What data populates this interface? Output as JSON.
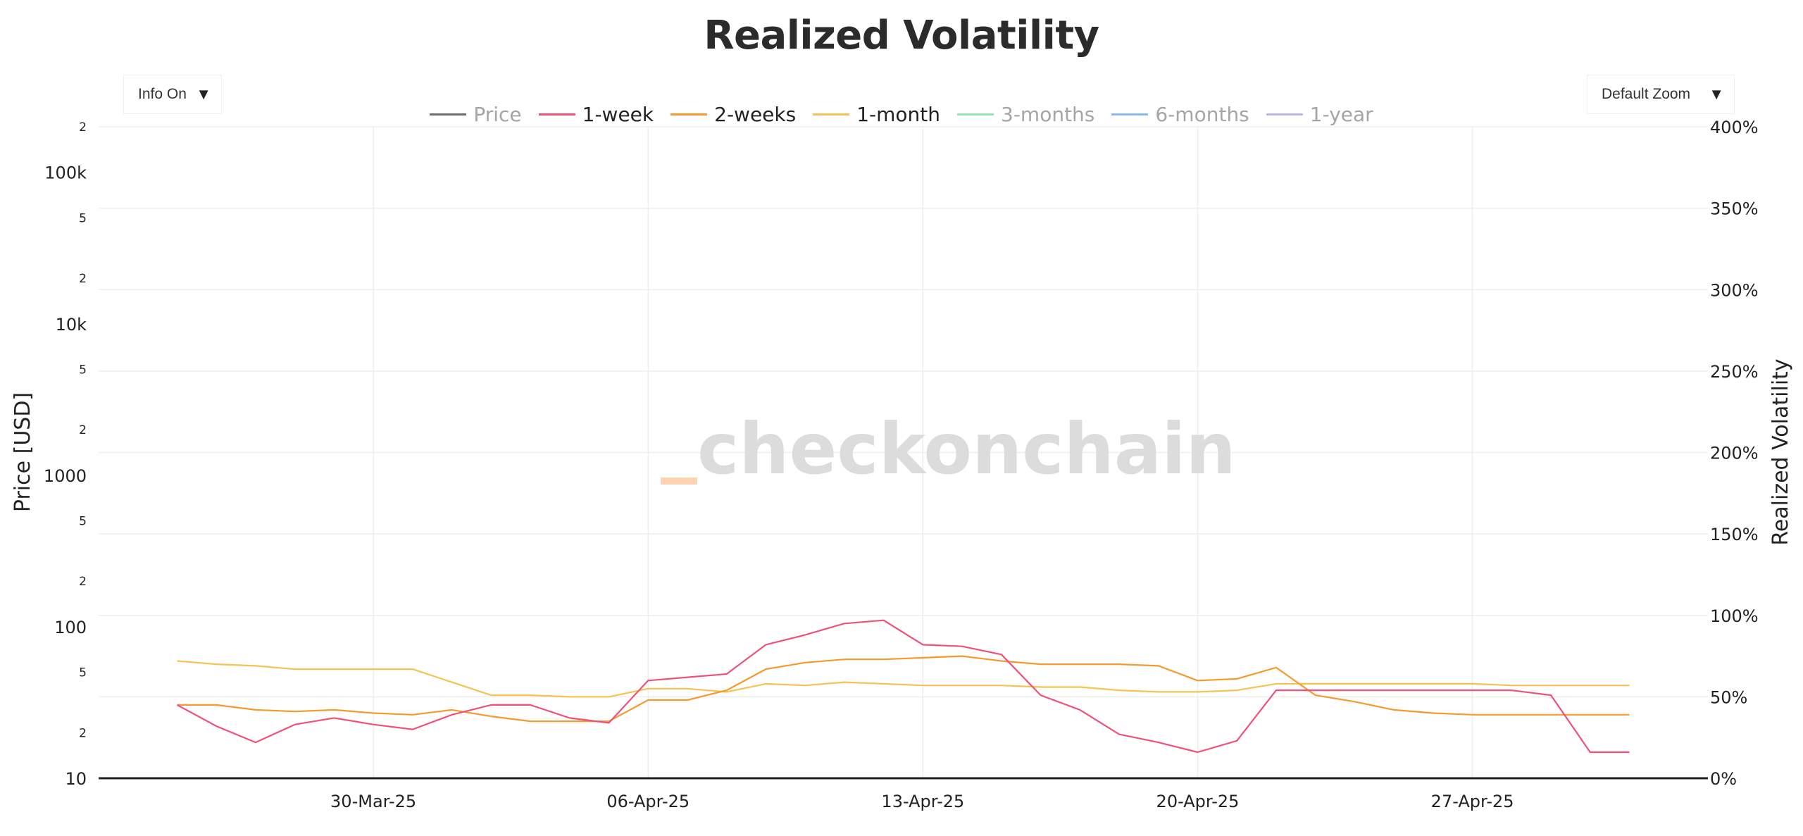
{
  "title": "Realized Volatility",
  "controls": {
    "info_label": "Info On",
    "zoom_label": "Default Zoom",
    "caret": "▼"
  },
  "watermark": "checkonchain",
  "colors": {
    "price": "#555555",
    "1-week": "#f0517a",
    "2-weeks": "#f59a2e",
    "1-month": "#f7c154",
    "3-months": "#7fe0a6",
    "6-months": "#78aef0",
    "1-year": "#b7a5ee",
    "watermark_accent": "#fbd3b0"
  },
  "legend": [
    {
      "name": "Price",
      "color": "#555555",
      "visible": false
    },
    {
      "name": "1-week",
      "color": "#f0517a",
      "visible": true
    },
    {
      "name": "2-weeks",
      "color": "#f59a2e",
      "visible": true
    },
    {
      "name": "1-month",
      "color": "#f7c154",
      "visible": true
    },
    {
      "name": "3-months",
      "color": "#7fe0a6",
      "visible": false
    },
    {
      "name": "6-months",
      "color": "#78aef0",
      "visible": false
    },
    {
      "name": "1-year",
      "color": "#b7a5ee",
      "visible": false
    }
  ],
  "chart_data": {
    "type": "line",
    "title": "Realized Volatility",
    "y_left": {
      "label": "Price [USD]",
      "scale": "log",
      "range": [
        10,
        200000
      ],
      "major_ticks": [
        {
          "value": 100000,
          "label": "100k"
        },
        {
          "value": 10000,
          "label": "10k"
        },
        {
          "value": 1000,
          "label": "1000"
        },
        {
          "value": 100,
          "label": "100"
        },
        {
          "value": 10,
          "label": "10"
        }
      ],
      "minor_ticks": [
        {
          "value": 200000,
          "label": "2"
        },
        {
          "value": 50000,
          "label": "5"
        },
        {
          "value": 20000,
          "label": "2"
        },
        {
          "value": 5000,
          "label": "5"
        },
        {
          "value": 2000,
          "label": "2"
        },
        {
          "value": 500,
          "label": "5"
        },
        {
          "value": 200,
          "label": "2"
        },
        {
          "value": 50,
          "label": "5"
        },
        {
          "value": 20,
          "label": "2"
        }
      ]
    },
    "y_right": {
      "label": "Realized Volatility",
      "range": [
        0,
        400
      ],
      "ticks": [
        {
          "value": 400,
          "label": "400%"
        },
        {
          "value": 350,
          "label": "350%"
        },
        {
          "value": 300,
          "label": "300%"
        },
        {
          "value": 250,
          "label": "250%"
        },
        {
          "value": 200,
          "label": "200%"
        },
        {
          "value": 150,
          "label": "150%"
        },
        {
          "value": 100,
          "label": "100%"
        },
        {
          "value": 50,
          "label": "50%"
        },
        {
          "value": 0,
          "label": "0%"
        }
      ]
    },
    "x": {
      "range": [
        "2025-03-23",
        "2025-05-03"
      ],
      "ticks": [
        {
          "value": "2025-03-30",
          "label": "30-Mar-25"
        },
        {
          "value": "2025-04-06",
          "label": "06-Apr-25"
        },
        {
          "value": "2025-04-13",
          "label": "13-Apr-25"
        },
        {
          "value": "2025-04-20",
          "label": "20-Apr-25"
        },
        {
          "value": "2025-04-27",
          "label": "27-Apr-25"
        }
      ]
    },
    "dates": [
      "2025-03-25",
      "2025-03-26",
      "2025-03-27",
      "2025-03-28",
      "2025-03-29",
      "2025-03-30",
      "2025-03-31",
      "2025-04-01",
      "2025-04-02",
      "2025-04-03",
      "2025-04-04",
      "2025-04-05",
      "2025-04-06",
      "2025-04-07",
      "2025-04-08",
      "2025-04-09",
      "2025-04-10",
      "2025-04-11",
      "2025-04-12",
      "2025-04-13",
      "2025-04-14",
      "2025-04-15",
      "2025-04-16",
      "2025-04-17",
      "2025-04-18",
      "2025-04-19",
      "2025-04-20",
      "2025-04-21",
      "2025-04-22",
      "2025-04-23",
      "2025-04-24",
      "2025-04-25",
      "2025-04-26",
      "2025-04-27",
      "2025-04-28",
      "2025-04-29",
      "2025-04-30",
      "2025-05-01"
    ],
    "series": [
      {
        "name": "1-week",
        "axis": "right",
        "values": [
          45,
          32,
          22,
          33,
          37,
          33,
          30,
          39,
          45,
          45,
          37,
          34,
          60,
          62,
          64,
          82,
          88,
          95,
          97,
          82,
          81,
          76,
          51,
          42,
          27,
          22,
          16,
          23,
          54,
          54,
          54,
          54,
          54,
          54,
          54,
          51,
          16,
          16
        ]
      },
      {
        "name": "2-weeks",
        "axis": "right",
        "values": [
          45,
          45,
          42,
          41,
          42,
          40,
          39,
          42,
          38,
          35,
          35,
          35,
          48,
          48,
          54,
          67,
          71,
          73,
          73,
          74,
          75,
          72,
          70,
          70,
          70,
          69,
          60,
          61,
          68,
          51,
          47,
          42,
          40,
          39,
          39,
          39,
          39,
          39
        ]
      },
      {
        "name": "1-month",
        "axis": "right",
        "values": [
          72,
          70,
          69,
          67,
          67,
          67,
          67,
          59,
          51,
          51,
          50,
          50,
          55,
          55,
          53,
          58,
          57,
          59,
          58,
          57,
          57,
          57,
          56,
          56,
          54,
          53,
          53,
          54,
          58,
          58,
          58,
          58,
          58,
          58,
          57,
          57,
          57,
          57
        ]
      }
    ]
  }
}
